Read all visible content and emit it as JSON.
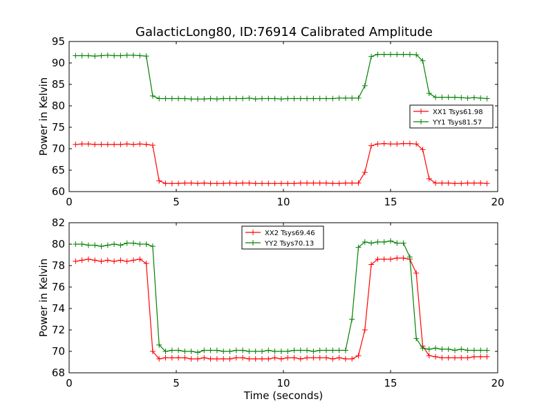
{
  "figure": {
    "title": "GalacticLong80, ID:76914 Calibrated Amplitude",
    "xlabel": "Time (seconds)"
  },
  "chart_data": [
    {
      "type": "line",
      "ylabel": "Power in Kelvin",
      "xlim": [
        0,
        20
      ],
      "ylim": [
        60,
        95
      ],
      "xticks": [
        0,
        5,
        10,
        15,
        20
      ],
      "yticks": [
        60,
        65,
        70,
        75,
        80,
        85,
        90,
        95
      ],
      "legend_position": "center-right",
      "series": [
        {
          "name": "XX1 Tsys61.98",
          "color": "#ff0000",
          "x": [
            0.3,
            0.6,
            0.9,
            1.2,
            1.5,
            1.8,
            2.1,
            2.4,
            2.7,
            3.0,
            3.3,
            3.6,
            3.9,
            4.2,
            4.5,
            4.8,
            5.1,
            5.4,
            5.7,
            6.0,
            6.3,
            6.6,
            6.9,
            7.2,
            7.5,
            7.8,
            8.1,
            8.4,
            8.7,
            9.0,
            9.3,
            9.6,
            9.9,
            10.2,
            10.5,
            10.8,
            11.1,
            11.4,
            11.7,
            12.0,
            12.3,
            12.6,
            12.9,
            13.2,
            13.5,
            13.8,
            14.1,
            14.4,
            14.7,
            15.0,
            15.3,
            15.6,
            15.9,
            16.2,
            16.5,
            16.8,
            17.1,
            17.4,
            17.7,
            18.0,
            18.3,
            18.6,
            18.9,
            19.2,
            19.5
          ],
          "y": [
            71.0,
            71.1,
            71.1,
            71.0,
            71.0,
            71.0,
            71.0,
            71.0,
            71.1,
            71.0,
            71.1,
            71.0,
            70.8,
            62.5,
            61.9,
            61.9,
            61.9,
            62.0,
            62.0,
            61.9,
            62.0,
            61.9,
            61.9,
            61.9,
            62.0,
            61.9,
            62.0,
            62.0,
            61.9,
            61.9,
            61.9,
            61.9,
            61.9,
            61.9,
            61.9,
            62.0,
            62.0,
            62.0,
            62.0,
            62.0,
            61.9,
            61.9,
            62.0,
            62.0,
            62.0,
            64.5,
            70.7,
            71.1,
            71.2,
            71.1,
            71.1,
            71.2,
            71.2,
            71.1,
            69.8,
            63.0,
            62.0,
            62.0,
            62.0,
            61.9,
            61.9,
            62.0,
            62.0,
            62.0,
            61.9
          ]
        },
        {
          "name": "YY1 Tsys81.57",
          "color": "#008000",
          "x": [
            0.3,
            0.6,
            0.9,
            1.2,
            1.5,
            1.8,
            2.1,
            2.4,
            2.7,
            3.0,
            3.3,
            3.6,
            3.9,
            4.2,
            4.5,
            4.8,
            5.1,
            5.4,
            5.7,
            6.0,
            6.3,
            6.6,
            6.9,
            7.2,
            7.5,
            7.8,
            8.1,
            8.4,
            8.7,
            9.0,
            9.3,
            9.6,
            9.9,
            10.2,
            10.5,
            10.8,
            11.1,
            11.4,
            11.7,
            12.0,
            12.3,
            12.6,
            12.9,
            13.2,
            13.5,
            13.8,
            14.1,
            14.4,
            14.7,
            15.0,
            15.3,
            15.6,
            15.9,
            16.2,
            16.5,
            16.8,
            17.1,
            17.4,
            17.7,
            18.0,
            18.3,
            18.6,
            18.9,
            19.2,
            19.5
          ],
          "y": [
            91.7,
            91.7,
            91.7,
            91.6,
            91.7,
            91.8,
            91.7,
            91.7,
            91.8,
            91.8,
            91.7,
            91.6,
            82.3,
            81.7,
            81.7,
            81.7,
            81.7,
            81.7,
            81.6,
            81.6,
            81.6,
            81.7,
            81.6,
            81.7,
            81.7,
            81.7,
            81.7,
            81.8,
            81.6,
            81.7,
            81.7,
            81.7,
            81.6,
            81.7,
            81.7,
            81.7,
            81.7,
            81.7,
            81.7,
            81.7,
            81.7,
            81.8,
            81.8,
            81.8,
            81.8,
            84.7,
            91.5,
            92.0,
            92.0,
            92.0,
            92.0,
            92.0,
            92.0,
            91.9,
            90.5,
            82.9,
            82.0,
            82.0,
            82.0,
            82.0,
            81.9,
            81.8,
            81.9,
            81.8,
            81.7
          ]
        }
      ]
    },
    {
      "type": "line",
      "ylabel": "Power in Kelvin",
      "xlabel": "Time (seconds)",
      "xlim": [
        0,
        20
      ],
      "ylim": [
        68,
        82
      ],
      "xticks": [
        0,
        5,
        10,
        15,
        20
      ],
      "yticks": [
        68,
        70,
        72,
        74,
        76,
        78,
        80,
        82
      ],
      "legend_position": "upper-center",
      "series": [
        {
          "name": "XX2 Tsys69.46",
          "color": "#ff0000",
          "x": [
            0.3,
            0.6,
            0.9,
            1.2,
            1.5,
            1.8,
            2.1,
            2.4,
            2.7,
            3.0,
            3.3,
            3.6,
            3.9,
            4.2,
            4.5,
            4.8,
            5.1,
            5.4,
            5.7,
            6.0,
            6.3,
            6.6,
            6.9,
            7.2,
            7.5,
            7.8,
            8.1,
            8.4,
            8.7,
            9.0,
            9.3,
            9.6,
            9.9,
            10.2,
            10.5,
            10.8,
            11.1,
            11.4,
            11.7,
            12.0,
            12.3,
            12.6,
            12.9,
            13.2,
            13.5,
            13.8,
            14.1,
            14.4,
            14.7,
            15.0,
            15.3,
            15.6,
            15.9,
            16.2,
            16.5,
            16.8,
            17.1,
            17.4,
            17.7,
            18.0,
            18.3,
            18.6,
            18.9,
            19.2,
            19.5
          ],
          "y": [
            78.4,
            78.5,
            78.6,
            78.5,
            78.4,
            78.5,
            78.4,
            78.5,
            78.4,
            78.5,
            78.6,
            78.2,
            70.0,
            69.3,
            69.4,
            69.4,
            69.4,
            69.4,
            69.3,
            69.3,
            69.4,
            69.3,
            69.3,
            69.3,
            69.3,
            69.4,
            69.4,
            69.3,
            69.3,
            69.3,
            69.3,
            69.4,
            69.3,
            69.4,
            69.4,
            69.3,
            69.4,
            69.4,
            69.4,
            69.4,
            69.3,
            69.4,
            69.3,
            69.3,
            69.6,
            72.0,
            78.1,
            78.6,
            78.6,
            78.6,
            78.7,
            78.7,
            78.6,
            77.3,
            70.5,
            69.6,
            69.5,
            69.4,
            69.4,
            69.4,
            69.4,
            69.4,
            69.5,
            69.5,
            69.5
          ]
        },
        {
          "name": "YY2 Tsys70.13",
          "color": "#008000",
          "x": [
            0.3,
            0.6,
            0.9,
            1.2,
            1.5,
            1.8,
            2.1,
            2.4,
            2.7,
            3.0,
            3.3,
            3.6,
            3.9,
            4.2,
            4.5,
            4.8,
            5.1,
            5.4,
            5.7,
            6.0,
            6.3,
            6.6,
            6.9,
            7.2,
            7.5,
            7.8,
            8.1,
            8.4,
            8.7,
            9.0,
            9.3,
            9.6,
            9.9,
            10.2,
            10.5,
            10.8,
            11.1,
            11.4,
            11.7,
            12.0,
            12.3,
            12.6,
            12.9,
            13.2,
            13.5,
            13.8,
            14.1,
            14.4,
            14.7,
            15.0,
            15.3,
            15.6,
            15.9,
            16.2,
            16.5,
            16.8,
            17.1,
            17.4,
            17.7,
            18.0,
            18.3,
            18.6,
            18.9,
            19.2,
            19.5
          ],
          "y": [
            80.0,
            80.0,
            79.9,
            79.9,
            79.8,
            79.9,
            80.0,
            79.9,
            80.1,
            80.1,
            80.0,
            80.0,
            79.8,
            70.6,
            70.0,
            70.1,
            70.1,
            70.0,
            70.0,
            69.9,
            70.1,
            70.1,
            70.1,
            70.0,
            70.0,
            70.1,
            70.1,
            70.0,
            70.0,
            70.0,
            70.1,
            70.0,
            70.0,
            70.0,
            70.1,
            70.1,
            70.1,
            70.0,
            70.1,
            70.1,
            70.1,
            70.1,
            70.1,
            73.0,
            79.7,
            80.2,
            80.1,
            80.2,
            80.2,
            80.3,
            80.1,
            80.1,
            78.8,
            71.2,
            70.3,
            70.2,
            70.3,
            70.2,
            70.2,
            70.1,
            70.2,
            70.1,
            70.1,
            70.1,
            70.1
          ]
        }
      ]
    }
  ]
}
